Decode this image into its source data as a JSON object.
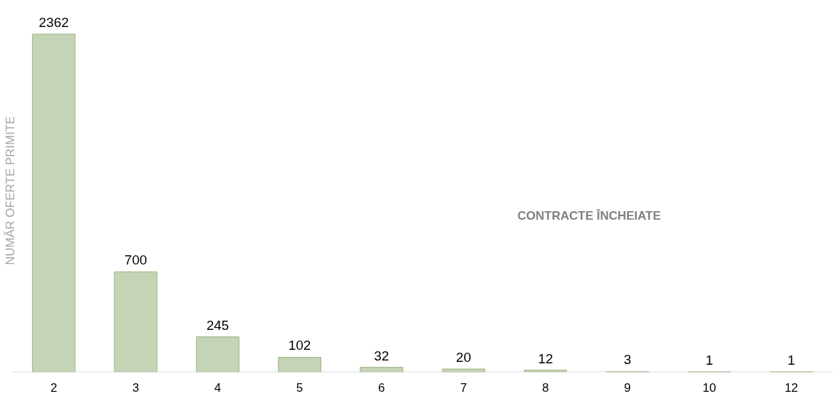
{
  "chart_data": {
    "type": "bar",
    "title": "CONTRACTE ÎNCHEIATE",
    "ylabel": "NUMĂR OFERTE PRIMITE",
    "categories": [
      "2",
      "3",
      "4",
      "5",
      "6",
      "7",
      "8",
      "9",
      "10",
      "12"
    ],
    "values": [
      2362,
      700,
      245,
      102,
      32,
      20,
      12,
      3,
      1,
      1
    ],
    "color": "#c5d4b6",
    "data_labels": true,
    "tick_labels": "x"
  }
}
